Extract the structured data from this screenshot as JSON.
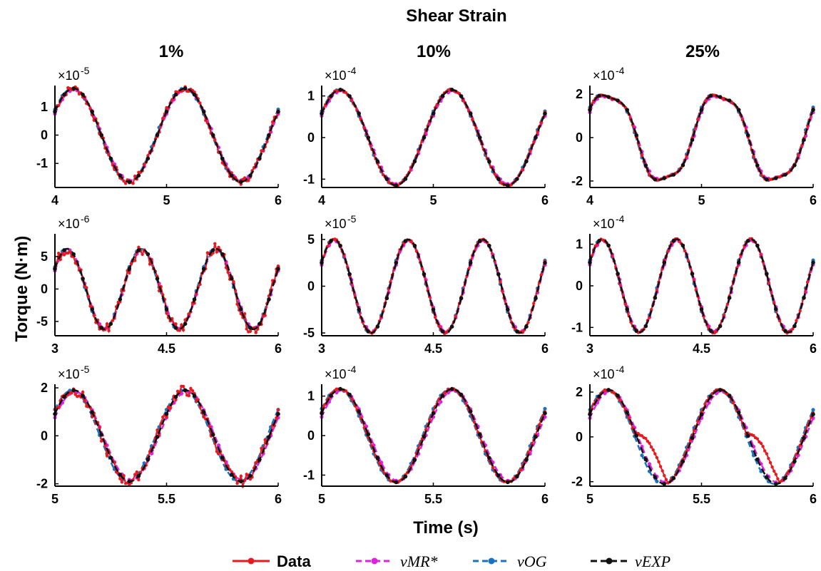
{
  "figure": {
    "suptitle": "Shear Strain",
    "xlabel": "Time (s)",
    "ylabel": "Torque (N·m)",
    "column_titles": [
      "1%",
      "10%",
      "25%"
    ]
  },
  "legend": {
    "entries": [
      {
        "label": "Data",
        "color": "#e8191f",
        "style": "solid-dots"
      },
      {
        "label": "vMR*",
        "color": "#e020e0",
        "style": "dashed-dots"
      },
      {
        "label": "vOG",
        "color": "#1a73c0",
        "style": "dashed-dots"
      },
      {
        "label": "vEXP",
        "color": "#111111",
        "style": "dashed-dots"
      }
    ],
    "placement": "bottom-center"
  },
  "chart_data": [
    {
      "type": "line",
      "row": 0,
      "col": 0,
      "exponent": "-5",
      "xlim": [
        4,
        6
      ],
      "ylim": [
        -1.85,
        1.75
      ],
      "xticks": [
        4,
        5,
        6
      ],
      "yticks": [
        -1,
        0,
        1
      ],
      "f": 1,
      "phase": 0.2,
      "amp": 1.65,
      "data_noise": 0.12,
      "dist": []
    },
    {
      "type": "line",
      "row": 0,
      "col": 1,
      "exponent": "-4",
      "xlim": [
        4,
        6
      ],
      "ylim": [
        -1.2,
        1.25
      ],
      "xticks": [
        4,
        5,
        6
      ],
      "yticks": [
        -1,
        0,
        1
      ],
      "f": 1,
      "phase": 0.2,
      "amp": 1.15,
      "data_noise": 0.02,
      "dist": []
    },
    {
      "type": "line",
      "row": 0,
      "col": 2,
      "exponent": "-4",
      "xlim": [
        4,
        6
      ],
      "ylim": [
        -2.3,
        2.4
      ],
      "xticks": [
        4,
        5,
        6
      ],
      "yticks": [
        -2,
        0,
        2
      ],
      "f": 1,
      "phase": 0.2,
      "amp": 2.1,
      "data_noise": 0.02,
      "h3": 0.12,
      "dist": []
    },
    {
      "type": "line",
      "row": 1,
      "col": 0,
      "exponent": "-6",
      "xlim": [
        3,
        6
      ],
      "ylim": [
        -7.2,
        8.5
      ],
      "xticks": [
        3,
        4.5,
        6
      ],
      "yticks": [
        -5,
        0,
        5
      ],
      "f": 1,
      "phase": 0.05,
      "amp": 6.2,
      "data_noise": 0.9,
      "dist": []
    },
    {
      "type": "line",
      "row": 1,
      "col": 1,
      "exponent": "-5",
      "xlim": [
        3,
        6
      ],
      "ylim": [
        -5.3,
        5.6
      ],
      "xticks": [
        3,
        4.5,
        6
      ],
      "yticks": [
        -5,
        0,
        5
      ],
      "f": 1,
      "phase": 0.05,
      "amp": 5.0,
      "data_noise": 0.1,
      "dist": []
    },
    {
      "type": "line",
      "row": 1,
      "col": 2,
      "exponent": "-4",
      "xlim": [
        3,
        6
      ],
      "ylim": [
        -1.2,
        1.25
      ],
      "xticks": [
        3,
        4.5,
        6
      ],
      "yticks": [
        -1,
        0,
        1
      ],
      "f": 1,
      "phase": 0.05,
      "amp": 1.12,
      "data_noise": 0.02,
      "dist": []
    },
    {
      "type": "line",
      "row": 2,
      "col": 0,
      "exponent": "-5",
      "xlim": [
        5,
        6
      ],
      "ylim": [
        -2.1,
        2.15
      ],
      "xticks": [
        5,
        5.5,
        6
      ],
      "yticks": [
        -2,
        0,
        2
      ],
      "f": 2,
      "phase": 0.1,
      "amp": 1.9,
      "data_noise": 0.22,
      "dist": []
    },
    {
      "type": "line",
      "row": 2,
      "col": 1,
      "exponent": "-4",
      "xlim": [
        5,
        6
      ],
      "ylim": [
        -1.28,
        1.3
      ],
      "xticks": [
        5,
        5.5,
        6
      ],
      "yticks": [
        -1,
        0,
        1
      ],
      "f": 2,
      "phase": 0.1,
      "amp": 1.18,
      "data_noise": 0.02,
      "dist": []
    },
    {
      "type": "line",
      "row": 2,
      "col": 2,
      "exponent": "-4",
      "xlim": [
        5,
        6
      ],
      "ylim": [
        -2.2,
        2.35
      ],
      "xticks": [
        5,
        5.5,
        6
      ],
      "yticks": [
        -2,
        0,
        2
      ],
      "f": 2,
      "phase": 0.1,
      "amp": 2.1,
      "data_noise": 0.03,
      "dist": [
        [
          0.2,
          0.35
        ],
        [
          0.7,
          0.85
        ]
      ]
    }
  ]
}
